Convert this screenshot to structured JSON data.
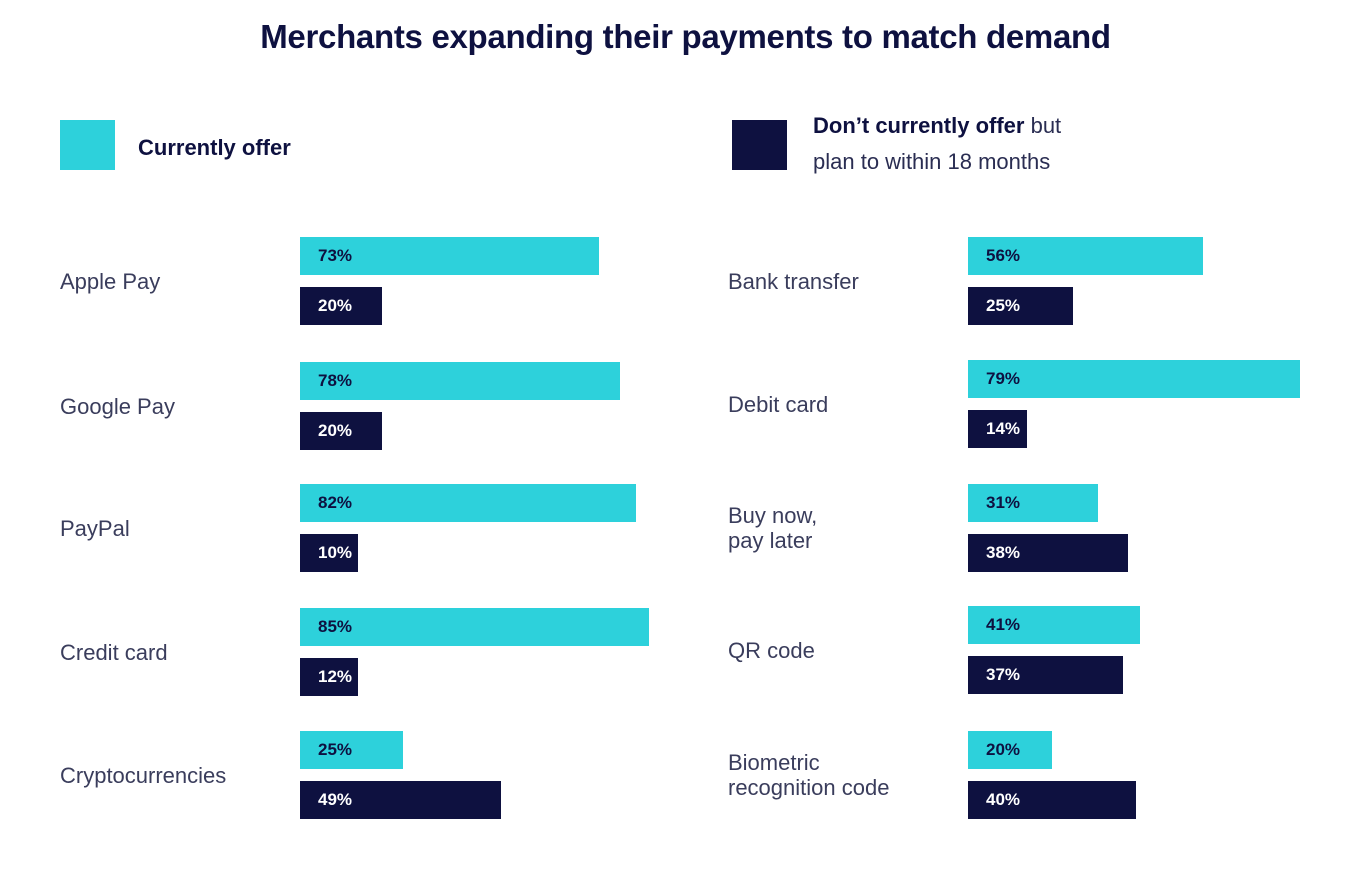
{
  "chart_data": {
    "type": "bar",
    "title": "Merchants expanding their payments to match demand",
    "legend": {
      "placement": "top",
      "current": {
        "label": "Currently offer",
        "color": "#2dd1db"
      },
      "planned": {
        "label_bold": "Don’t currently offer",
        "label_rest": " but",
        "label_line2": "plan to within 18 months",
        "color": "#0e1140"
      }
    },
    "unit": "%",
    "groups": [
      {
        "name": "left",
        "categories": [
          "Apple Pay",
          "Google Pay",
          "PayPal",
          "Credit card",
          "Cryptocurrencies"
        ],
        "series": [
          {
            "name": "Currently offer",
            "values": [
              73,
              78,
              82,
              85,
              25
            ]
          },
          {
            "name": "Don’t currently offer but plan to within 18 months",
            "values": [
              20,
              20,
              10,
              12,
              49
            ]
          }
        ]
      },
      {
        "name": "right",
        "categories": [
          [
            "Bank transfer"
          ],
          [
            "Debit card"
          ],
          [
            "Buy now,",
            "pay later"
          ],
          [
            "QR code"
          ],
          [
            "Biometric",
            "recognition code"
          ]
        ],
        "series": [
          {
            "name": "Currently offer",
            "values": [
              56,
              79,
              31,
              41,
              20
            ]
          },
          {
            "name": "Don’t currently offer but plan to within 18 months",
            "values": [
              25,
              14,
              38,
              37,
              40
            ]
          }
        ]
      }
    ]
  }
}
